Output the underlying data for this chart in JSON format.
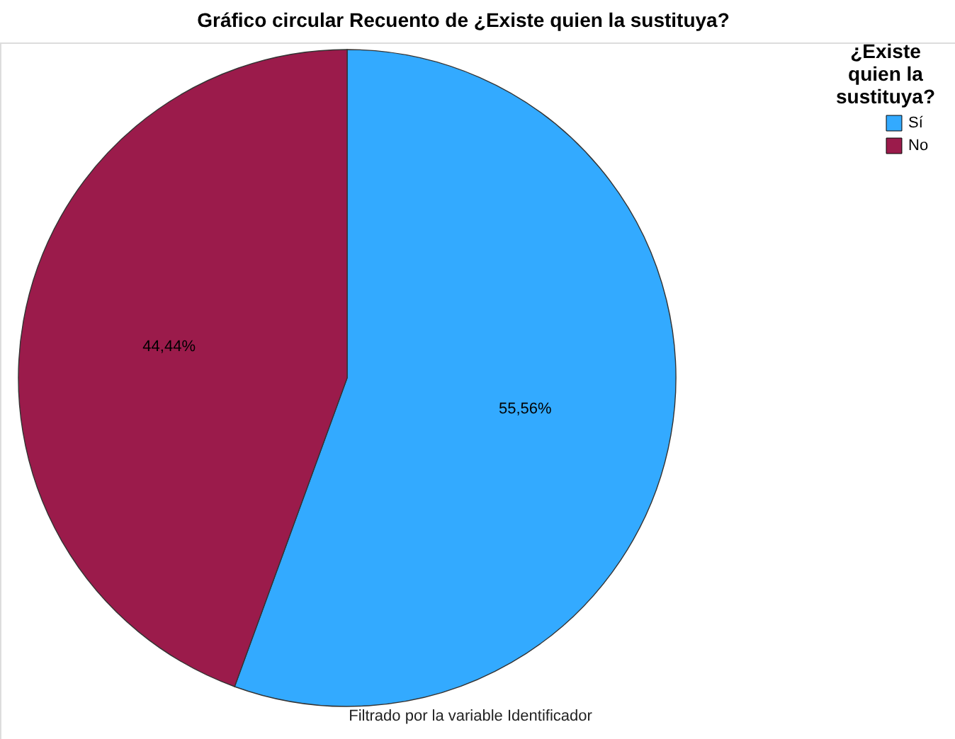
{
  "chart_data": {
    "type": "pie",
    "title": "Gráfico circular Recuento de ¿Existe quien la sustituya?",
    "legend_title": "¿Existe quien la sustituya?",
    "categories": [
      "Sí",
      "No"
    ],
    "values": [
      55.56,
      44.44
    ],
    "colors": [
      "#33aaff",
      "#9b1b4b"
    ],
    "value_labels": [
      "55,56%",
      "44,44%"
    ],
    "legend": "top right",
    "annotations": [
      "Filtrado por la variable Identificador"
    ]
  }
}
